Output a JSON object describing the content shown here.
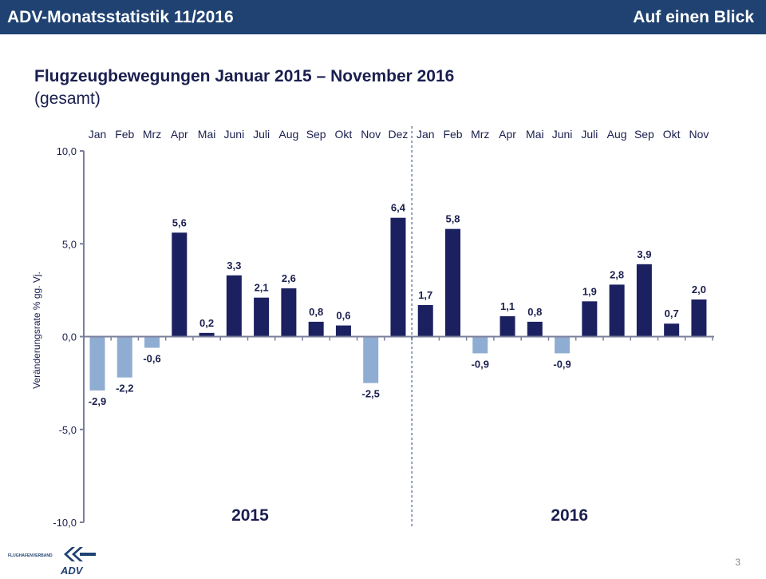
{
  "header": {
    "left": "ADV-Monatsstatistik 11/2016",
    "right": "Auf einen Blick"
  },
  "title": "Flugzeugbewegungen Januar 2015 – November 2016",
  "subtitle": "(gesamt)",
  "page_number": "3",
  "logo": {
    "text": "FLUGHAFENVERBAND",
    "mark": "ADV"
  },
  "chart_data": {
    "type": "bar",
    "ylabel": "Veränderungsrate % gg. Vj.",
    "ylim": [
      -10,
      10
    ],
    "yticks": [
      "10,0",
      "5,0",
      "0,0",
      "-5,0",
      "-10,0"
    ],
    "ytick_values": [
      10,
      5,
      0,
      -5,
      -10
    ],
    "categories": [
      "Jan",
      "Feb",
      "Mrz",
      "Apr",
      "Mai",
      "Juni",
      "Juli",
      "Aug",
      "Sep",
      "Okt",
      "Nov",
      "Dez",
      "Jan",
      "Feb",
      "Mrz",
      "Apr",
      "Mai",
      "Juni",
      "Juli",
      "Aug",
      "Sep",
      "Okt",
      "Nov"
    ],
    "values": [
      -2.9,
      -2.2,
      -0.6,
      5.6,
      0.2,
      3.3,
      2.1,
      2.6,
      0.8,
      0.6,
      -2.5,
      6.4,
      1.7,
      5.8,
      -0.9,
      1.1,
      0.8,
      -0.9,
      1.9,
      2.8,
      3.9,
      0.7,
      2.0
    ],
    "year_labels": [
      "2015",
      "2016"
    ],
    "colors": {
      "positive": "#1b2160",
      "negative": "#8fadd2"
    },
    "grid": false
  }
}
